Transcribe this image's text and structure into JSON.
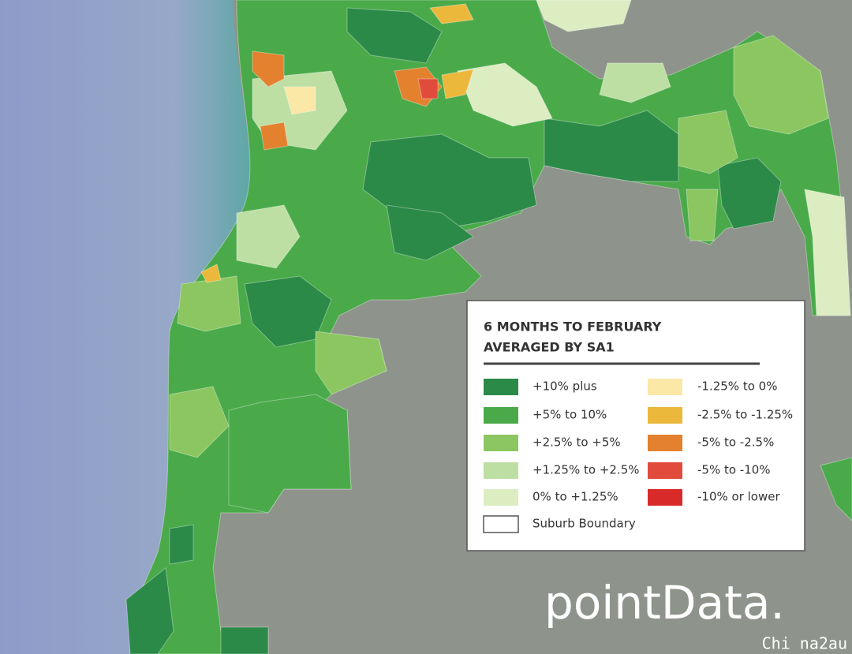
{
  "legend": {
    "title": [
      "6 MONTHS TO FEBRUARY",
      "AVERAGED BY SA1"
    ],
    "left": [
      {
        "label": "+10% plus",
        "color": "#2b8a48"
      },
      {
        "label": "+5% to 10%",
        "color": "#4aaa4a"
      },
      {
        "label": "+2.5% to +5%",
        "color": "#8cc660"
      },
      {
        "label": "+1.25% to +2.5%",
        "color": "#bedfa4"
      },
      {
        "label": "0% to +1.25%",
        "color": "#dcedc2"
      },
      {
        "label": "Suburb Boundary",
        "color": "#ffffff"
      }
    ],
    "right": [
      {
        "label": "-1.25% to 0%",
        "color": "#fbe7a6"
      },
      {
        "label": "-2.5% to -1.25%",
        "color": "#ecb83c"
      },
      {
        "label": "-5% to -2.5%",
        "color": "#e4812e"
      },
      {
        "label": "-5% to -10%",
        "color": "#e14b3b"
      },
      {
        "label": "-10% or lower",
        "color": "#d92a2a"
      }
    ]
  },
  "logo": "pointData.",
  "watermark": "Chi na2au"
}
